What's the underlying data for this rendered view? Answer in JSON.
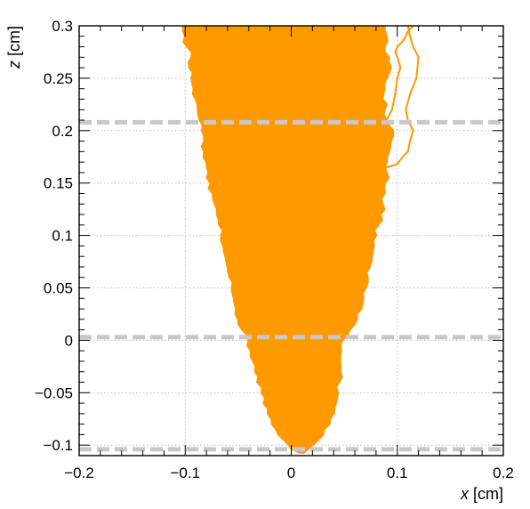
{
  "chart_data": {
    "type": "area",
    "title": "",
    "xlabel_var": "x",
    "xlabel_unit": " [cm]",
    "ylabel_var": "z",
    "ylabel_unit": " [cm]",
    "xlim": [
      -0.2,
      0.2
    ],
    "ylim": [
      -0.11,
      0.3
    ],
    "x_ticks": [
      {
        "value": -0.2,
        "label": "−0.2"
      },
      {
        "value": -0.1,
        "label": "−0.1"
      },
      {
        "value": 0,
        "label": "0"
      },
      {
        "value": 0.1,
        "label": "0.1"
      },
      {
        "value": 0.2,
        "label": "0.2"
      }
    ],
    "y_ticks": [
      {
        "value": -0.1,
        "label": "−0.1"
      },
      {
        "value": -0.05,
        "label": "−0.05"
      },
      {
        "value": 0,
        "label": "0"
      },
      {
        "value": 0.05,
        "label": "0.05"
      },
      {
        "value": 0.1,
        "label": "0.1"
      },
      {
        "value": 0.15,
        "label": "0.15"
      },
      {
        "value": 0.2,
        "label": "0.2"
      },
      {
        "value": 0.25,
        "label": "0.25"
      },
      {
        "value": 0.3,
        "label": "0.3"
      }
    ],
    "grid": true,
    "fill_color": "#ff9900",
    "boundary_color": "#c8c8c8",
    "boundaries_z": [
      0.208,
      0.003,
      -0.104
    ],
    "envelope": {
      "z": [
        -0.107,
        -0.1,
        -0.09,
        -0.08,
        -0.07,
        -0.06,
        -0.05,
        -0.04,
        -0.03,
        -0.02,
        -0.01,
        0.0,
        0.01,
        0.02,
        0.03,
        0.04,
        0.05,
        0.06,
        0.07,
        0.08,
        0.09,
        0.1,
        0.11,
        0.12,
        0.13,
        0.14,
        0.15,
        0.16,
        0.17,
        0.18,
        0.19,
        0.2,
        0.21,
        0.22,
        0.23,
        0.24,
        0.25,
        0.26,
        0.27,
        0.28,
        0.29,
        0.3
      ],
      "x_left": [
        0.008,
        -0.002,
        -0.012,
        -0.018,
        -0.022,
        -0.026,
        -0.028,
        -0.032,
        -0.034,
        -0.036,
        -0.038,
        -0.04,
        -0.046,
        -0.05,
        -0.052,
        -0.054,
        -0.056,
        -0.058,
        -0.06,
        -0.062,
        -0.064,
        -0.066,
        -0.068,
        -0.07,
        -0.072,
        -0.074,
        -0.076,
        -0.078,
        -0.08,
        -0.082,
        -0.082,
        -0.084,
        -0.086,
        -0.088,
        -0.09,
        -0.092,
        -0.094,
        -0.096,
        -0.094,
        -0.098,
        -0.1,
        -0.102
      ],
      "x_right": [
        0.012,
        0.02,
        0.03,
        0.036,
        0.04,
        0.042,
        0.044,
        0.045,
        0.046,
        0.046,
        0.047,
        0.048,
        0.055,
        0.062,
        0.066,
        0.068,
        0.07,
        0.072,
        0.074,
        0.076,
        0.078,
        0.08,
        0.082,
        0.084,
        0.086,
        0.088,
        0.088,
        0.09,
        0.09,
        0.092,
        0.094,
        0.096,
        0.09,
        0.088,
        0.086,
        0.088,
        0.09,
        0.094,
        0.092,
        0.088,
        0.09,
        0.088
      ]
    },
    "stray_tracks": [
      {
        "x": [
          0.075,
          0.08,
          0.085,
          0.09,
          0.1,
          0.105,
          0.11,
          0.112,
          0.115,
          0.11,
          0.108,
          0.112,
          0.118,
          0.12,
          0.115,
          0.112,
          0.11
        ],
        "z": [
          0.13,
          0.15,
          0.16,
          0.165,
          0.168,
          0.175,
          0.18,
          0.19,
          0.2,
          0.21,
          0.22,
          0.235,
          0.25,
          0.27,
          0.28,
          0.29,
          0.3
        ]
      },
      {
        "x": [
          0.09,
          0.095,
          0.098,
          0.1,
          0.103,
          0.1,
          0.098,
          0.1,
          0.105,
          0.108,
          0.11,
          0.115
        ],
        "z": [
          0.21,
          0.22,
          0.235,
          0.25,
          0.26,
          0.27,
          0.275,
          0.28,
          0.285,
          0.29,
          0.295,
          0.3
        ]
      }
    ]
  }
}
